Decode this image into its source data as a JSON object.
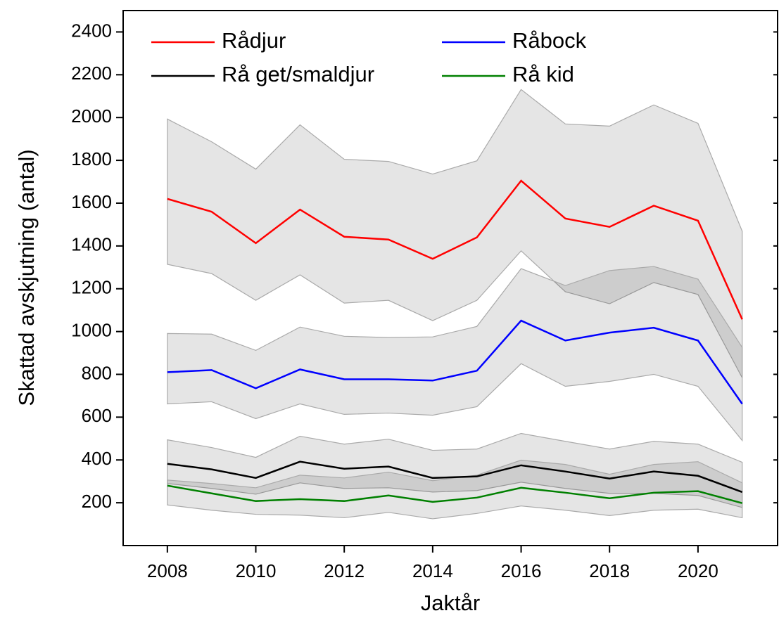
{
  "chart_data": {
    "type": "line",
    "xlabel": "Jaktår",
    "ylabel": "Skattad avskjutning (antal)",
    "x": [
      2008,
      2009,
      2010,
      2011,
      2012,
      2013,
      2014,
      2015,
      2016,
      2017,
      2018,
      2019,
      2020,
      2021
    ],
    "xlim": [
      2007,
      2021.8
    ],
    "xticks": [
      2008,
      2010,
      2012,
      2014,
      2016,
      2018,
      2020
    ],
    "ylim": [
      0,
      2500
    ],
    "yticks": [
      200,
      400,
      600,
      800,
      1000,
      1200,
      1400,
      1600,
      1800,
      2000,
      2200,
      2400
    ],
    "band_color": "#000000",
    "series": [
      {
        "name": "Rådjur",
        "color": "#ff0000",
        "values": [
          1620,
          1560,
          1413,
          1570,
          1443,
          1430,
          1340,
          1440,
          1705,
          1528,
          1489,
          1588,
          1518,
          1057
        ],
        "upper": [
          1993,
          1887,
          1759,
          1966,
          1805,
          1795,
          1736,
          1798,
          2131,
          1970,
          1960,
          2059,
          1973,
          1469
        ],
        "lower": [
          1314,
          1271,
          1146,
          1265,
          1133,
          1146,
          1051,
          1146,
          1377,
          1186,
          1130,
          1229,
          1173,
          784
        ]
      },
      {
        "name": "Råbock",
        "color": "#0000ff",
        "values": [
          810,
          820,
          735,
          823,
          777,
          777,
          771,
          817,
          1051,
          958,
          995,
          1018,
          958,
          662
        ],
        "upper": [
          991,
          988,
          912,
          1021,
          978,
          972,
          975,
          1024,
          1294,
          1215,
          1285,
          1304,
          1245,
          926
        ],
        "lower": [
          662,
          672,
          593,
          662,
          613,
          619,
          609,
          649,
          850,
          744,
          767,
          800,
          744,
          491
        ]
      },
      {
        "name": "Rå get/smaldjur",
        "color": "#000000",
        "values": [
          382,
          356,
          316,
          392,
          359,
          369,
          316,
          323,
          375,
          346,
          313,
          346,
          326,
          250
        ],
        "upper": [
          494,
          458,
          412,
          511,
          474,
          497,
          445,
          451,
          524,
          487,
          451,
          487,
          474,
          389
        ],
        "lower": [
          290,
          267,
          240,
          293,
          267,
          270,
          250,
          257,
          296,
          267,
          244,
          244,
          234,
          178
        ]
      },
      {
        "name": "Rå kid",
        "color": "#008000",
        "values": [
          280,
          244,
          208,
          217,
          208,
          234,
          204,
          224,
          270,
          247,
          221,
          247,
          254,
          198
        ],
        "upper": [
          306,
          290,
          270,
          329,
          316,
          343,
          303,
          329,
          399,
          379,
          333,
          379,
          392,
          293
        ],
        "lower": [
          190,
          165,
          146,
          142,
          130,
          155,
          125,
          150,
          185,
          165,
          140,
          165,
          170,
          130
        ]
      }
    ]
  }
}
